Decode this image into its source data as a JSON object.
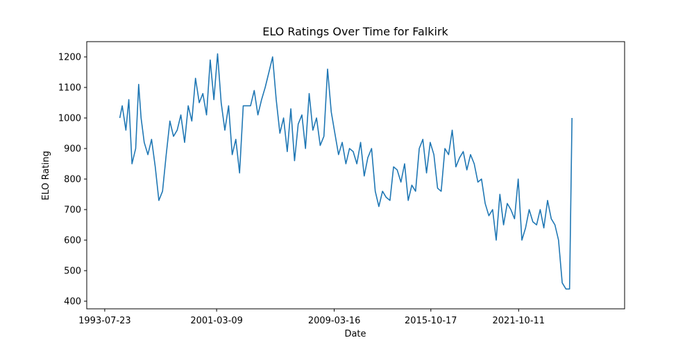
{
  "chart_data": {
    "type": "line",
    "title": "ELO Ratings Over Time for Falkirk",
    "xlabel": "Date",
    "ylabel": "ELO Rating",
    "xlim": [
      "1992-05-01",
      "2029-01-01"
    ],
    "ylim": [
      375,
      1250
    ],
    "x_ticks": [
      "1993-07-23",
      "2001-03-09",
      "2009-03-16",
      "2015-10-17",
      "2021-10-11"
    ],
    "y_ticks": [
      400,
      500,
      600,
      700,
      800,
      900,
      1000,
      1100,
      1200
    ],
    "grid": false,
    "series": [
      {
        "color": "#1f77b4",
        "x": [
          "1994-08-01",
          "1994-10-01",
          "1995-01-01",
          "1995-03-15",
          "1995-06-01",
          "1995-09-01",
          "1995-11-15",
          "1996-01-15",
          "1996-04-01",
          "1996-07-01",
          "1996-10-01",
          "1997-01-01",
          "1997-04-01",
          "1997-07-01",
          "1997-10-01",
          "1998-01-01",
          "1998-04-01",
          "1998-07-01",
          "1998-10-01",
          "1999-01-01",
          "1999-04-01",
          "1999-07-01",
          "1999-10-01",
          "2000-01-01",
          "2000-04-01",
          "2000-07-01",
          "2000-10-01",
          "2001-01-01",
          "2001-04-01",
          "2001-07-01",
          "2001-10-01",
          "2002-01-01",
          "2002-04-01",
          "2002-07-01",
          "2002-10-01",
          "2003-01-01",
          "2003-04-01",
          "2003-07-01",
          "2003-10-01",
          "2004-01-01",
          "2004-04-01",
          "2004-07-01",
          "2004-10-01",
          "2005-01-01",
          "2005-04-01",
          "2005-07-01",
          "2005-10-01",
          "2006-01-01",
          "2006-04-01",
          "2006-07-01",
          "2006-10-01",
          "2007-01-01",
          "2007-04-01",
          "2007-07-01",
          "2007-10-01",
          "2008-01-01",
          "2008-04-01",
          "2008-07-01",
          "2008-10-01",
          "2009-01-01",
          "2009-04-01",
          "2009-07-01",
          "2009-10-01",
          "2010-01-01",
          "2010-04-01",
          "2010-07-01",
          "2010-10-01",
          "2011-01-01",
          "2011-04-01",
          "2011-07-01",
          "2011-10-01",
          "2012-01-01",
          "2012-04-01",
          "2012-07-01",
          "2012-10-01",
          "2013-01-01",
          "2013-04-01",
          "2013-07-01",
          "2013-10-01",
          "2014-01-01",
          "2014-04-01",
          "2014-07-01",
          "2014-10-01",
          "2015-01-01",
          "2015-04-01",
          "2015-07-01",
          "2015-10-01",
          "2016-01-01",
          "2016-04-01",
          "2016-07-01",
          "2016-10-01",
          "2017-01-01",
          "2017-04-01",
          "2017-07-01",
          "2017-10-01",
          "2018-01-01",
          "2018-04-01",
          "2018-07-01",
          "2018-10-01",
          "2019-01-01",
          "2019-04-01",
          "2019-07-01",
          "2019-10-01",
          "2020-01-01",
          "2020-04-01",
          "2020-07-01",
          "2020-10-01",
          "2021-01-01",
          "2021-04-01",
          "2021-07-01",
          "2021-10-01",
          "2022-01-01",
          "2022-04-01",
          "2022-07-01",
          "2022-10-01",
          "2023-01-01",
          "2023-04-01",
          "2023-07-01",
          "2023-10-01",
          "2024-01-01",
          "2024-04-01",
          "2024-07-01",
          "2024-10-01",
          "2025-01-01",
          "2025-04-01",
          "2025-06-01"
        ],
        "y": [
          1000,
          1040,
          960,
          1060,
          850,
          900,
          1110,
          1000,
          920,
          880,
          930,
          840,
          730,
          760,
          880,
          990,
          940,
          960,
          1010,
          920,
          1040,
          990,
          1130,
          1050,
          1080,
          1010,
          1190,
          1060,
          1210,
          1050,
          960,
          1040,
          880,
          930,
          820,
          1040,
          1040,
          1040,
          1090,
          1010,
          1060,
          1100,
          1150,
          1200,
          1060,
          950,
          1000,
          890,
          1030,
          860,
          980,
          1010,
          900,
          1080,
          960,
          1000,
          910,
          940,
          1160,
          1020,
          950,
          880,
          920,
          850,
          900,
          890,
          850,
          920,
          810,
          870,
          900,
          760,
          710,
          760,
          740,
          730,
          840,
          830,
          790,
          850,
          730,
          780,
          760,
          900,
          930,
          820,
          920,
          880,
          770,
          760,
          900,
          880,
          960,
          840,
          870,
          890,
          830,
          880,
          850,
          790,
          800,
          720,
          680,
          700,
          600,
          750,
          650,
          720,
          700,
          670,
          800,
          600,
          640,
          700,
          660,
          650,
          700,
          640,
          730,
          670,
          650,
          600,
          460,
          440,
          440,
          1000
        ]
      }
    ]
  }
}
